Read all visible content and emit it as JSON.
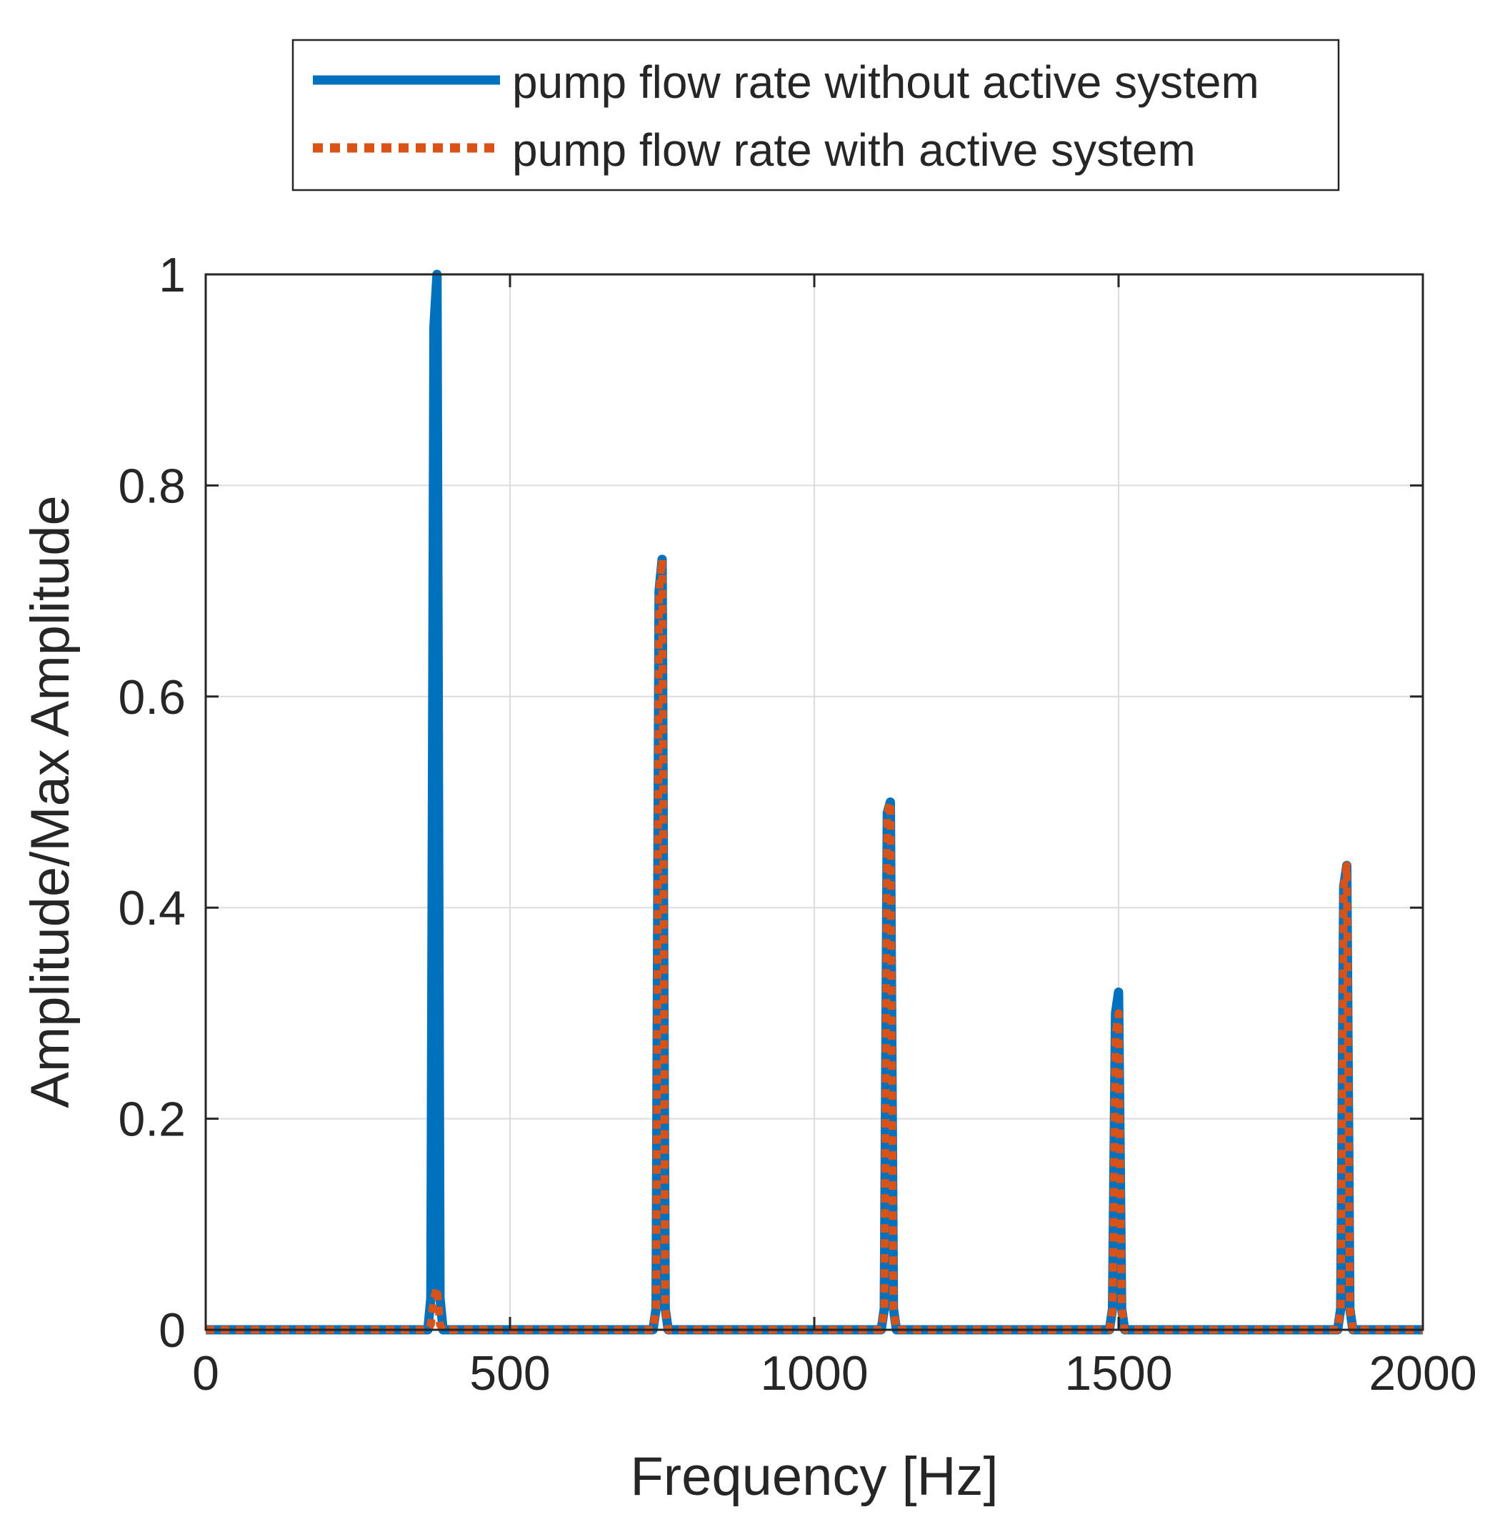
{
  "chart_data": {
    "type": "line",
    "title": "",
    "xlabel": "Frequency [Hz]",
    "ylabel": "Amplitude/Max Amplitude",
    "xlim": [
      0,
      2000
    ],
    "ylim": [
      0,
      1
    ],
    "xticks": [
      0,
      500,
      1000,
      1500,
      2000
    ],
    "yticks": [
      0,
      0.2,
      0.4,
      0.6,
      0.8,
      1
    ],
    "xtick_labels": [
      "0",
      "500",
      "1000",
      "1500",
      "2000"
    ],
    "ytick_labels": [
      "0",
      "0.2",
      "0.4",
      "0.6",
      "0.8",
      "1"
    ],
    "grid": true,
    "legend_position": "top-outside",
    "series": [
      {
        "name": "pump flow rate without active system",
        "color": "#0072BD",
        "style": "solid",
        "x": [
          0,
          365,
          370,
          375,
          380,
          385,
          390,
          735,
          740,
          745,
          750,
          755,
          760,
          1110,
          1115,
          1120,
          1125,
          1130,
          1135,
          1485,
          1490,
          1495,
          1500,
          1505,
          1510,
          1860,
          1865,
          1870,
          1875,
          1880,
          1885,
          2000
        ],
        "y": [
          0,
          0,
          0.03,
          0.95,
          1.0,
          0.03,
          0,
          0,
          0.02,
          0.7,
          0.73,
          0.02,
          0,
          0,
          0.02,
          0.49,
          0.5,
          0.02,
          0,
          0,
          0.02,
          0.3,
          0.32,
          0.02,
          0,
          0,
          0.02,
          0.42,
          0.44,
          0.02,
          0,
          0
        ]
      },
      {
        "name": "pump flow rate with active system",
        "color": "#D95319",
        "style": "dotted",
        "x": [
          0,
          365,
          370,
          375,
          380,
          385,
          390,
          735,
          740,
          745,
          750,
          755,
          760,
          1110,
          1115,
          1120,
          1125,
          1130,
          1135,
          1485,
          1490,
          1495,
          1500,
          1505,
          1510,
          1860,
          1865,
          1870,
          1875,
          1880,
          1885,
          2000
        ],
        "y": [
          0,
          0,
          0.005,
          0.03,
          0.04,
          0.005,
          0,
          0,
          0.02,
          0.7,
          0.73,
          0.02,
          0,
          0,
          0.02,
          0.49,
          0.5,
          0.02,
          0,
          0,
          0.02,
          0.28,
          0.3,
          0.02,
          0,
          0,
          0.02,
          0.42,
          0.44,
          0.02,
          0,
          0
        ]
      }
    ]
  }
}
